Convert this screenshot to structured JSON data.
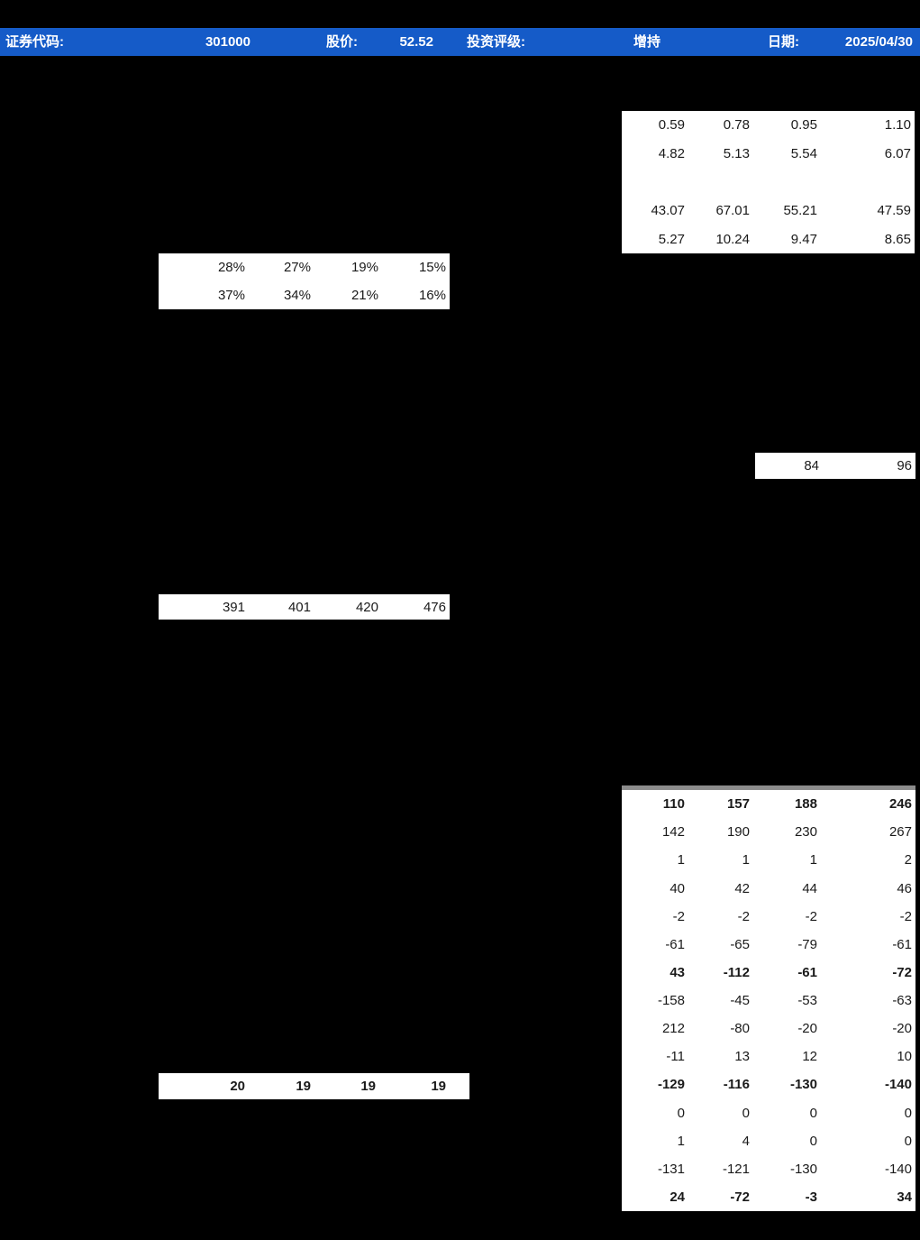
{
  "colors": {
    "page_bg": "#000000",
    "header_bg": "#155BC8",
    "header_fg": "#FFFFFF",
    "table_bg": "#FFFFFF",
    "table_fg": "#1A1A1A",
    "table_top_border": "#8C8C8C"
  },
  "header": {
    "items": [
      {
        "label": "证券代码:",
        "value": "301000"
      },
      {
        "label": "股价:",
        "value": "52.52"
      },
      {
        "label": "投资评级:",
        "value": "增持"
      },
      {
        "label": "日期:",
        "value": "2025/04/30"
      }
    ]
  },
  "tables": {
    "top_right": {
      "rows": [
        {
          "cells": [
            "0.59",
            "0.78",
            "0.95",
            "1.10"
          ]
        },
        {
          "cells": [
            "4.82",
            "5.13",
            "5.54",
            "6.07"
          ]
        },
        {
          "cells": [
            "",
            "",
            "",
            ""
          ]
        },
        {
          "cells": [
            "43.07",
            "67.01",
            "55.21",
            "47.59"
          ]
        },
        {
          "cells": [
            "5.27",
            "10.24",
            "9.47",
            "8.65"
          ]
        }
      ]
    },
    "percent": {
      "rows": [
        {
          "cells": [
            "28%",
            "27%",
            "19%",
            "15%"
          ]
        },
        {
          "cells": [
            "37%",
            "34%",
            "21%",
            "16%"
          ]
        }
      ]
    },
    "pair": {
      "rows": [
        {
          "cells": [
            "84",
            "96"
          ]
        }
      ]
    },
    "quad": {
      "rows": [
        {
          "cells": [
            "391",
            "401",
            "420",
            "476"
          ]
        }
      ]
    },
    "bottom_right": {
      "rows": [
        {
          "cells": [
            "110",
            "157",
            "188",
            "246"
          ],
          "bold": true
        },
        {
          "cells": [
            "142",
            "190",
            "230",
            "267"
          ]
        },
        {
          "cells": [
            "1",
            "1",
            "1",
            "2"
          ]
        },
        {
          "cells": [
            "40",
            "42",
            "44",
            "46"
          ]
        },
        {
          "cells": [
            "-2",
            "-2",
            "-2",
            "-2"
          ]
        },
        {
          "cells": [
            "-61",
            "-65",
            "-79",
            "-61"
          ]
        },
        {
          "cells": [
            "43",
            "-112",
            "-61",
            "-72"
          ],
          "bold": true
        },
        {
          "cells": [
            "-158",
            "-45",
            "-53",
            "-63"
          ]
        },
        {
          "cells": [
            "212",
            "-80",
            "-20",
            "-20"
          ]
        },
        {
          "cells": [
            "-11",
            "13",
            "12",
            "10"
          ]
        },
        {
          "cells": [
            "-129",
            "-116",
            "-130",
            "-140"
          ],
          "bold": true
        },
        {
          "cells": [
            "0",
            "0",
            "0",
            "0"
          ]
        },
        {
          "cells": [
            "1",
            "4",
            "0",
            "0"
          ]
        },
        {
          "cells": [
            "-131",
            "-121",
            "-130",
            "-140"
          ]
        },
        {
          "cells": [
            "24",
            "-72",
            "-3",
            "34"
          ],
          "bold": true
        }
      ]
    },
    "bottom_left": {
      "rows": [
        {
          "cells": [
            "20",
            "19",
            "19",
            "19"
          ],
          "bold": true
        }
      ]
    }
  }
}
